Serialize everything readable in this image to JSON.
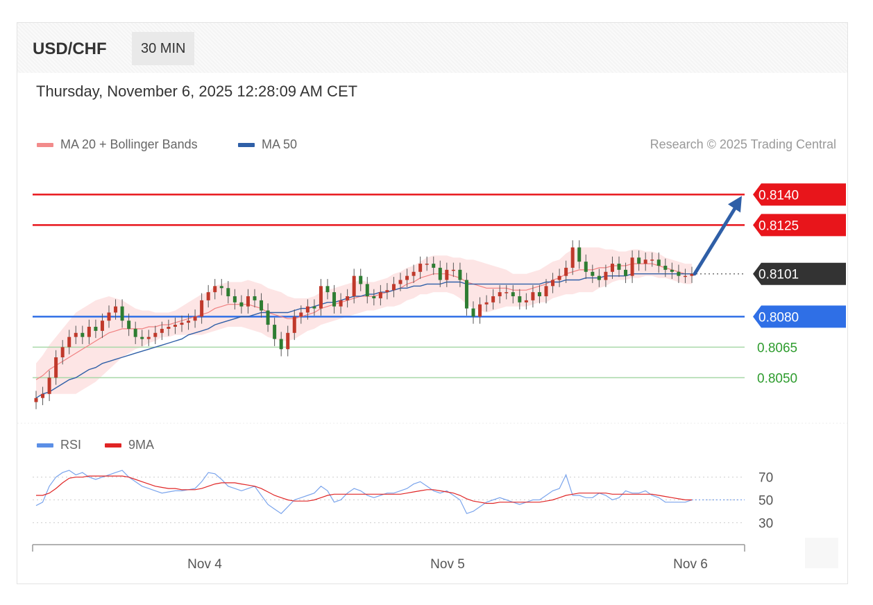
{
  "header": {
    "symbol": "USD/CHF",
    "timeframe": "30 MIN",
    "datetime": "Thursday, November 6, 2025 12:28:09 AM CET",
    "credit": "Research © 2025 Trading Central"
  },
  "legend_main": [
    {
      "label": "MA 20 + Bollinger Bands",
      "color": "#f28b8b"
    },
    {
      "label": "MA 50",
      "color": "#2f5fa7"
    }
  ],
  "legend_rsi": [
    {
      "label": "RSI",
      "color": "#5b8fe6"
    },
    {
      "label": "9MA",
      "color": "#e02424"
    }
  ],
  "colors": {
    "resistance": "#e8151b",
    "pivot": "#2f6fe6",
    "support": "#2e9c2e",
    "last": "#333333",
    "bull": "#c0392b",
    "bear": "#2e7d32",
    "band": "#fde0e0",
    "arrow": "#2f5fa7"
  },
  "chart_data": {
    "type": "candlestick",
    "price_axis": {
      "ylim": [
        0.803,
        0.815
      ]
    },
    "x_labels": [
      "Nov 4",
      "Nov 5",
      "Nov 6"
    ],
    "levels": [
      {
        "value": "0.8140",
        "role": "resistance"
      },
      {
        "value": "0.8125",
        "role": "resistance"
      },
      {
        "value": "0.8101",
        "role": "last"
      },
      {
        "value": "0.8080",
        "role": "pivot"
      },
      {
        "value": "0.8065",
        "role": "support"
      },
      {
        "value": "0.8050",
        "role": "support"
      }
    ],
    "close": [
      0.804,
      0.8042,
      0.805,
      0.806,
      0.8065,
      0.807,
      0.8072,
      0.807,
      0.8075,
      0.8073,
      0.8078,
      0.8082,
      0.8085,
      0.8078,
      0.8074,
      0.807,
      0.8069,
      0.807,
      0.8072,
      0.8074,
      0.8075,
      0.8076,
      0.8077,
      0.8078,
      0.808,
      0.8088,
      0.8092,
      0.8095,
      0.8094,
      0.809,
      0.8087,
      0.8085,
      0.809,
      0.8088,
      0.8083,
      0.8076,
      0.8069,
      0.8064,
      0.8072,
      0.808,
      0.8082,
      0.8085,
      0.8084,
      0.8095,
      0.8092,
      0.8085,
      0.8088,
      0.809,
      0.81,
      0.8096,
      0.809,
      0.8089,
      0.8092,
      0.8093,
      0.8096,
      0.8098,
      0.81,
      0.8102,
      0.8106,
      0.8106,
      0.8104,
      0.8098,
      0.8103,
      0.8103,
      0.8098,
      0.8084,
      0.808,
      0.8086,
      0.8087,
      0.809,
      0.8092,
      0.8092,
      0.809,
      0.8087,
      0.8088,
      0.8092,
      0.809,
      0.8095,
      0.8098,
      0.81,
      0.8104,
      0.8114,
      0.8107,
      0.8102,
      0.81,
      0.8098,
      0.8102,
      0.8106,
      0.8103,
      0.81,
      0.8109,
      0.8106,
      0.8108,
      0.8108,
      0.8105,
      0.8103,
      0.8102,
      0.81,
      0.81,
      0.8101
    ],
    "ma20": [
      0.8049,
      0.8051,
      0.8054,
      0.8056,
      0.8058,
      0.806,
      0.8062,
      0.8064,
      0.8066,
      0.8068,
      0.807,
      0.8072,
      0.8073,
      0.8074,
      0.8074,
      0.8074,
      0.8074,
      0.8075,
      0.8075,
      0.8076,
      0.8076,
      0.8077,
      0.8078,
      0.8079,
      0.808,
      0.8081,
      0.8082,
      0.8084,
      0.8085,
      0.8086,
      0.8086,
      0.8086,
      0.8086,
      0.8085,
      0.8084,
      0.8082,
      0.8081,
      0.808,
      0.8079,
      0.8079,
      0.808,
      0.8081,
      0.8082,
      0.8084,
      0.8085,
      0.8086,
      0.8087,
      0.8088,
      0.8089,
      0.809,
      0.809,
      0.809,
      0.8091,
      0.8092,
      0.8093,
      0.8094,
      0.8096,
      0.8097,
      0.8099,
      0.81,
      0.8101,
      0.8101,
      0.8101,
      0.81,
      0.8099,
      0.8097,
      0.8096,
      0.8095,
      0.8094,
      0.8094,
      0.8094,
      0.8094,
      0.8093,
      0.8093,
      0.8093,
      0.8094,
      0.8095,
      0.8096,
      0.8098,
      0.8099,
      0.8101,
      0.8102,
      0.8103,
      0.8103,
      0.8103,
      0.8104,
      0.8104,
      0.8105,
      0.8105,
      0.8105,
      0.8106,
      0.8106,
      0.8106,
      0.8106,
      0.8105,
      0.8104,
      0.8103,
      0.8102,
      0.8101,
      0.8101
    ],
    "ma50": [
      0.804,
      0.8042,
      0.8043,
      0.8045,
      0.8047,
      0.8049,
      0.805,
      0.8052,
      0.8054,
      0.8055,
      0.8057,
      0.8058,
      0.8059,
      0.806,
      0.8061,
      0.8062,
      0.8063,
      0.8064,
      0.8065,
      0.8066,
      0.8067,
      0.8068,
      0.8069,
      0.8071,
      0.8072,
      0.8073,
      0.8074,
      0.8076,
      0.8077,
      0.8078,
      0.8079,
      0.808,
      0.808,
      0.8081,
      0.8082,
      0.8082,
      0.8082,
      0.8082,
      0.8082,
      0.8083,
      0.8084,
      0.8084,
      0.8085,
      0.8086,
      0.8087,
      0.8087,
      0.8088,
      0.8089,
      0.809,
      0.809,
      0.8091,
      0.8091,
      0.8092,
      0.8092,
      0.8093,
      0.8094,
      0.8094,
      0.8095,
      0.8095,
      0.8096,
      0.8096,
      0.8096,
      0.8097,
      0.8097,
      0.8097,
      0.8096,
      0.8096,
      0.8096,
      0.8096,
      0.8096,
      0.8096,
      0.8096,
      0.8096,
      0.8096,
      0.8096,
      0.8096,
      0.8096,
      0.8097,
      0.8097,
      0.8097,
      0.8098,
      0.8098,
      0.8098,
      0.8099,
      0.8099,
      0.8099,
      0.81,
      0.81,
      0.81,
      0.81,
      0.8101,
      0.8101,
      0.8101,
      0.8101,
      0.8101,
      0.8101,
      0.8101,
      0.8101,
      0.8101,
      0.8101
    ],
    "band_width": [
      0.0008,
      0.001,
      0.0012,
      0.0014,
      0.0016,
      0.0018,
      0.002,
      0.002,
      0.002,
      0.002,
      0.0019,
      0.0018,
      0.0016,
      0.0014,
      0.0012,
      0.001,
      0.0009,
      0.0008,
      0.0007,
      0.0006,
      0.0006,
      0.0006,
      0.0007,
      0.0008,
      0.0009,
      0.001,
      0.001,
      0.0011,
      0.0011,
      0.0011,
      0.0011,
      0.0011,
      0.0012,
      0.0012,
      0.0012,
      0.0012,
      0.0012,
      0.0012,
      0.0011,
      0.001,
      0.0009,
      0.0008,
      0.0008,
      0.0008,
      0.0008,
      0.0008,
      0.0008,
      0.0008,
      0.0008,
      0.0008,
      0.0007,
      0.0007,
      0.0007,
      0.0007,
      0.0008,
      0.0008,
      0.0008,
      0.0008,
      0.0008,
      0.0009,
      0.0009,
      0.0009,
      0.0009,
      0.0009,
      0.001,
      0.0011,
      0.0012,
      0.0012,
      0.0012,
      0.0011,
      0.001,
      0.0009,
      0.0008,
      0.0008,
      0.0008,
      0.0008,
      0.0008,
      0.0009,
      0.0009,
      0.0009,
      0.001,
      0.0011,
      0.0011,
      0.0011,
      0.0011,
      0.001,
      0.0009,
      0.0008,
      0.0007,
      0.0007,
      0.0007,
      0.0007,
      0.0006,
      0.0006,
      0.0006,
      0.0005,
      0.0005,
      0.0005,
      0.0005,
      0.0005
    ],
    "projection": {
      "from": 0.8101,
      "to": 0.814
    },
    "rsi": {
      "y_ticks": [
        "70",
        "50",
        "30"
      ],
      "ylim": [
        15,
        82
      ],
      "rsi": [
        45,
        48,
        62,
        70,
        74,
        76,
        72,
        74,
        70,
        68,
        70,
        72,
        74,
        76,
        70,
        66,
        62,
        60,
        58,
        56,
        57,
        58,
        58,
        59,
        60,
        66,
        74,
        73,
        68,
        62,
        60,
        58,
        60,
        62,
        54,
        46,
        42,
        38,
        44,
        50,
        52,
        54,
        56,
        62,
        58,
        48,
        50,
        56,
        60,
        58,
        54,
        52,
        54,
        56,
        56,
        58,
        60,
        64,
        66,
        62,
        58,
        56,
        58,
        54,
        50,
        38,
        40,
        44,
        48,
        50,
        52,
        50,
        48,
        46,
        48,
        50,
        50,
        54,
        58,
        60,
        72,
        54,
        54,
        52,
        52,
        56,
        54,
        50,
        52,
        58,
        56,
        56,
        58,
        54,
        52,
        48,
        48,
        48,
        48,
        50
      ],
      "ma9": [
        54,
        54,
        56,
        60,
        65,
        69,
        70,
        70,
        71,
        71,
        71,
        71,
        71,
        71,
        70,
        68,
        66,
        64,
        62,
        61,
        60,
        60,
        59,
        59,
        59,
        60,
        62,
        64,
        65,
        65,
        65,
        64,
        63,
        62,
        60,
        57,
        54,
        52,
        50,
        49,
        49,
        49,
        50,
        52,
        54,
        55,
        55,
        55,
        55,
        55,
        55,
        55,
        55,
        55,
        55,
        55,
        56,
        57,
        58,
        59,
        59,
        58,
        57,
        56,
        54,
        51,
        49,
        48,
        47,
        47,
        48,
        48,
        48,
        48,
        48,
        48,
        48,
        49,
        50,
        52,
        54,
        55,
        56,
        56,
        56,
        56,
        56,
        55,
        55,
        55,
        55,
        55,
        55,
        55,
        54,
        53,
        52,
        51,
        50,
        50
      ]
    }
  }
}
